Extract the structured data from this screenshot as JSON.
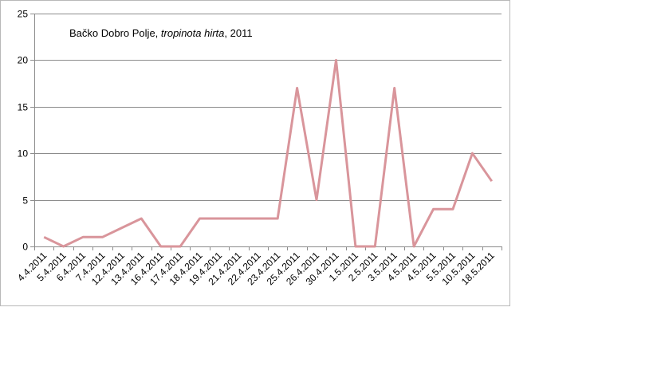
{
  "chart_data": {
    "type": "line",
    "title": {
      "plain": "Bačko Dobro Polje, ",
      "italic": "tropinota hirta",
      "suffix": ", 2011"
    },
    "xlabel": "",
    "ylabel": "",
    "ylim": [
      0,
      25
    ],
    "yticks": [
      "0",
      "5",
      "10",
      "15",
      "20",
      "25"
    ],
    "grid": true,
    "legend": "none",
    "line_color": "#d9959b",
    "categories": [
      "4.4.2011",
      "5.4.2011",
      "6.4.2011",
      "7.4.2011",
      "12.4.2011",
      "13.4.2011",
      "16.4.2011",
      "17.4.2011",
      "18.4.2011",
      "19.4.2011",
      "21.4.2011",
      "22.4.2011",
      "23.4.2011",
      "25.4.2011",
      "26.4.2011",
      "30.4.2011",
      "1.5.2011",
      "2.5.2011",
      "3.5.2011",
      "4.5.2011",
      "4.5.2011",
      "5.5.2011",
      "10.5.2011",
      "18.5.2011"
    ],
    "values": [
      1,
      0,
      1,
      1,
      2,
      3,
      0,
      0,
      3,
      3,
      3,
      3,
      3,
      17,
      5,
      20,
      0,
      0,
      17,
      0,
      4,
      4,
      10,
      7
    ]
  }
}
